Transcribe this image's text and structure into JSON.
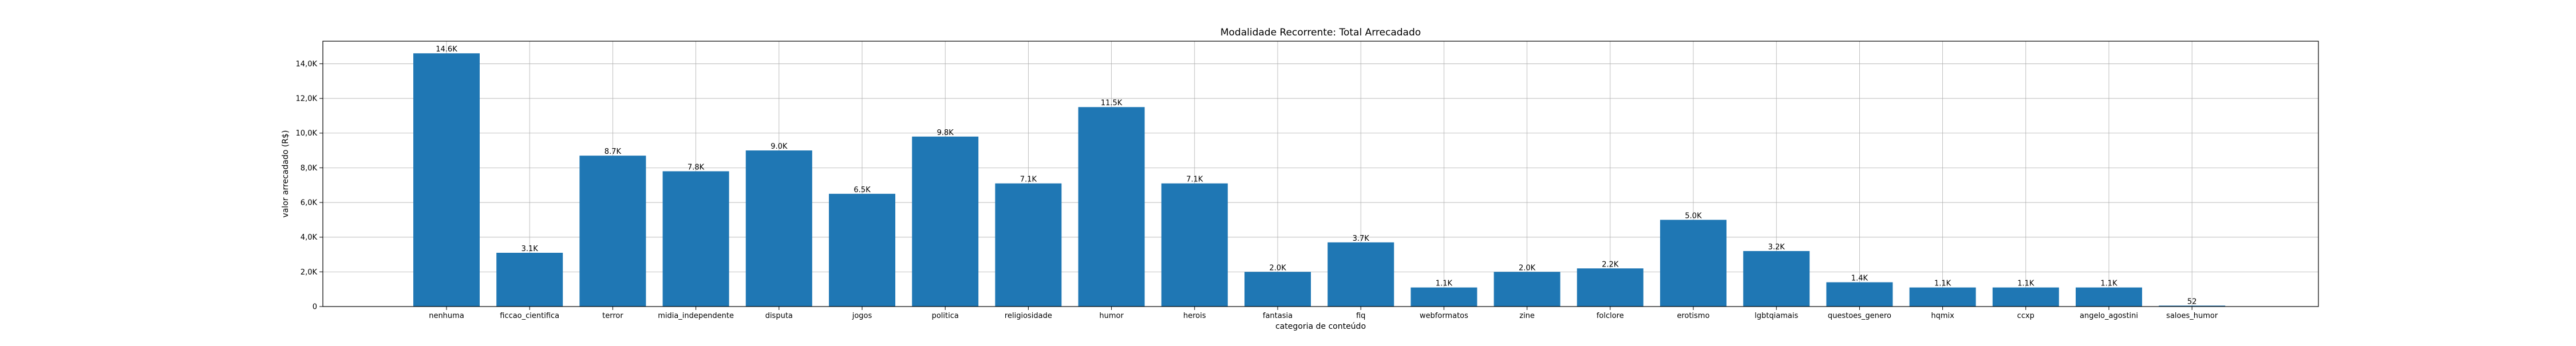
{
  "chart_data": {
    "type": "bar",
    "title": "Modalidade Recorrente: Total Arrecadado",
    "xlabel": "categoria de conteúdo",
    "ylabel": "valor arrecadado (R$)",
    "categories": [
      "nenhuma",
      "ficcao_cientifica",
      "terror",
      "midia_independente",
      "disputa",
      "jogos",
      "politica",
      "religiosidade",
      "humor",
      "herois",
      "fantasia",
      "fiq",
      "webformatos",
      "zine",
      "folclore",
      "erotismo",
      "lgbtqiamais",
      "questoes_genero",
      "hqmix",
      "ccxp",
      "angelo_agostini",
      "saloes_humor"
    ],
    "values": [
      14600,
      3100,
      8700,
      7800,
      9000,
      6500,
      9800,
      7100,
      11500,
      7100,
      2000,
      3700,
      1100,
      2000,
      2200,
      5000,
      3200,
      1400,
      1100,
      1100,
      1100,
      52
    ],
    "value_labels": [
      "14.6K",
      "3.1K",
      "8.7K",
      "7.8K",
      "9.0K",
      "6.5K",
      "9.8K",
      "7.1K",
      "11.5K",
      "7.1K",
      "2.0K",
      "3.7K",
      "1.1K",
      "2.0K",
      "2.2K",
      "5.0K",
      "3.2K",
      "1.4K",
      "1.1K",
      "1.1K",
      "1.1K",
      "52"
    ],
    "ylim": [
      0,
      15300
    ],
    "yticks": [
      0,
      2000,
      4000,
      6000,
      8000,
      10000,
      12000,
      14000
    ],
    "ytick_labels": [
      "0",
      "2,0K",
      "4,0K",
      "6,0K",
      "8,0K",
      "10,0K",
      "12,0K",
      "14,0K"
    ],
    "grid": true,
    "bar_color": "#1f77b4"
  }
}
